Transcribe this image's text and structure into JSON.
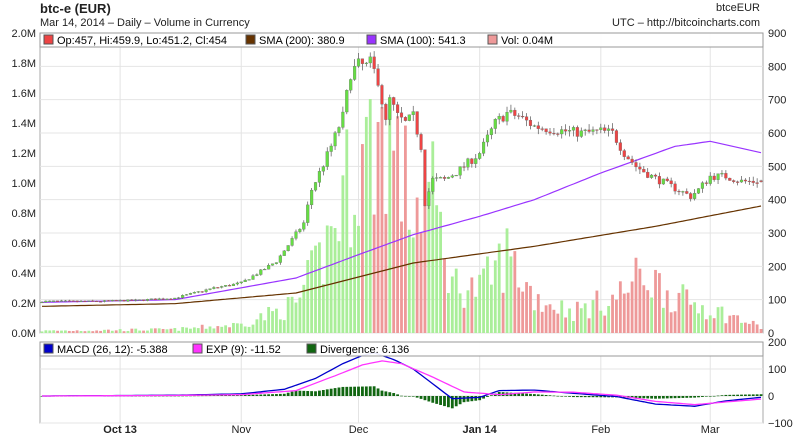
{
  "header": {
    "title": "btc-e (EUR)",
    "subtitle": "Mar 14, 2014 – Daily – Volume in Currency",
    "symbol": "btceEUR",
    "source": "UTC – http://bitcoincharts.com"
  },
  "price_legend": {
    "ohlc": "Op:457, Hi:459.9, Lo:451.2, Cl:454",
    "sma200": "SMA (200): 380.9",
    "sma100": "SMA (100): 541.3",
    "vol": "Vol: 0.04M"
  },
  "macd_legend": {
    "macd": "MACD (26, 12): -5.388",
    "exp": "EXP (9): -11.52",
    "div": "Divergence: 6.136"
  },
  "colors": {
    "up_candle": "#66dd44",
    "down_candle": "#ee4444",
    "up_volume": "#aaee99",
    "down_volume": "#ee9999",
    "sma200": "#663300",
    "sma100": "#9933ff",
    "macd": "#0000cc",
    "exp": "#ff33ff",
    "divergence": "#116611",
    "wick": "#555555",
    "grid": "#e4e4e4"
  },
  "chart_data": [
    {
      "type": "candlestick",
      "title": "btc-e (EUR)",
      "x_axis": {
        "tick_labels": [
          "Oct 13",
          "Nov",
          "Dec",
          "Jan 14",
          "Feb",
          "Mar"
        ],
        "start": "2013-09-11",
        "end": "2014-03-14"
      },
      "y_right": {
        "range": [
          0,
          900
        ],
        "tick_labels": [
          "0",
          "100",
          "200",
          "300",
          "400",
          "500",
          "600",
          "700",
          "800",
          "900"
        ]
      },
      "y_left": {
        "range": [
          0,
          2000000
        ],
        "tick_labels": [
          "0.0M",
          "0.2M",
          "0.4M",
          "0.6M",
          "0.8M",
          "1.0M",
          "1.2M",
          "1.4M",
          "1.6M",
          "1.8M",
          "2.0M"
        ]
      },
      "price_close_keypoints": [
        [
          "2013-09-11",
          95
        ],
        [
          "2013-09-25",
          95
        ],
        [
          "2013-10-05",
          98
        ],
        [
          "2013-10-15",
          105
        ],
        [
          "2013-10-25",
          135
        ],
        [
          "2013-11-01",
          150
        ],
        [
          "2013-11-06",
          185
        ],
        [
          "2013-11-10",
          215
        ],
        [
          "2013-11-14",
          280
        ],
        [
          "2013-11-17",
          330
        ],
        [
          "2013-11-19",
          430
        ],
        [
          "2013-11-21",
          480
        ],
        [
          "2013-11-24",
          560
        ],
        [
          "2013-11-27",
          650
        ],
        [
          "2013-11-29",
          780
        ],
        [
          "2013-12-01",
          805
        ],
        [
          "2013-12-03",
          800
        ],
        [
          "2013-12-04",
          810
        ],
        [
          "2013-12-06",
          760
        ],
        [
          "2013-12-08",
          630
        ],
        [
          "2013-12-09",
          700
        ],
        [
          "2013-12-11",
          650
        ],
        [
          "2013-12-13",
          630
        ],
        [
          "2013-12-15",
          650
        ],
        [
          "2013-12-17",
          560
        ],
        [
          "2013-12-18",
          390
        ],
        [
          "2013-12-20",
          460
        ],
        [
          "2013-12-23",
          460
        ],
        [
          "2013-12-27",
          490
        ],
        [
          "2014-01-01",
          540
        ],
        [
          "2014-01-05",
          630
        ],
        [
          "2014-01-08",
          660
        ],
        [
          "2014-01-11",
          650
        ],
        [
          "2014-01-15",
          620
        ],
        [
          "2014-01-20",
          610
        ],
        [
          "2014-01-27",
          600
        ],
        [
          "2014-02-01",
          605
        ],
        [
          "2014-02-04",
          600
        ],
        [
          "2014-02-07",
          540
        ],
        [
          "2014-02-10",
          500
        ],
        [
          "2014-02-14",
          470
        ],
        [
          "2014-02-19",
          440
        ],
        [
          "2014-02-24",
          410
        ],
        [
          "2014-02-26",
          430
        ],
        [
          "2014-03-01",
          470
        ],
        [
          "2014-03-05",
          470
        ],
        [
          "2014-03-09",
          455
        ],
        [
          "2014-03-14",
          454
        ]
      ],
      "volume_keypoints": [
        [
          "2013-09-11",
          15000
        ],
        [
          "2013-10-15",
          25000
        ],
        [
          "2013-11-01",
          60000
        ],
        [
          "2013-11-15",
          200000
        ],
        [
          "2013-11-22",
          550000
        ],
        [
          "2013-11-29",
          1100000
        ],
        [
          "2013-12-04",
          1300000
        ],
        [
          "2013-12-08",
          1450000
        ],
        [
          "2013-12-15",
          850000
        ],
        [
          "2013-12-19",
          1050000
        ],
        [
          "2013-12-25",
          350000
        ],
        [
          "2014-01-01",
          300000
        ],
        [
          "2014-01-08",
          550000
        ],
        [
          "2014-01-15",
          250000
        ],
        [
          "2014-01-25",
          150000
        ],
        [
          "2014-02-05",
          250000
        ],
        [
          "2014-02-12",
          420000
        ],
        [
          "2014-02-20",
          250000
        ],
        [
          "2014-03-01",
          170000
        ],
        [
          "2014-03-14",
          40000
        ]
      ],
      "sma200_keypoints": [
        [
          "2013-09-11",
          80
        ],
        [
          "2013-10-15",
          88
        ],
        [
          "2013-11-15",
          120
        ],
        [
          "2013-12-15",
          210
        ],
        [
          "2014-01-15",
          260
        ],
        [
          "2014-02-15",
          320
        ],
        [
          "2014-03-14",
          381
        ]
      ],
      "sma100_keypoints": [
        [
          "2013-09-11",
          92
        ],
        [
          "2013-10-15",
          100
        ],
        [
          "2013-11-15",
          165
        ],
        [
          "2013-12-01",
          235
        ],
        [
          "2013-12-15",
          295
        ],
        [
          "2014-01-01",
          350
        ],
        [
          "2014-01-15",
          400
        ],
        [
          "2014-02-01",
          480
        ],
        [
          "2014-02-20",
          560
        ],
        [
          "2014-03-01",
          575
        ],
        [
          "2014-03-14",
          541
        ]
      ],
      "ticker_ohlc": {
        "open": 457,
        "high": 459.9,
        "low": 451.2,
        "close": 454
      }
    },
    {
      "type": "line",
      "title": "MACD (26, 12)",
      "y_axis": {
        "range": [
          -100,
          200
        ],
        "tick_labels": [
          "200",
          "100",
          "0",
          "−100"
        ]
      },
      "macd_keypoints": [
        [
          "2013-09-11",
          0
        ],
        [
          "2013-10-15",
          3
        ],
        [
          "2013-11-01",
          8
        ],
        [
          "2013-11-12",
          25
        ],
        [
          "2013-11-20",
          65
        ],
        [
          "2013-11-27",
          120
        ],
        [
          "2013-12-02",
          150
        ],
        [
          "2013-12-05",
          160
        ],
        [
          "2013-12-10",
          135
        ],
        [
          "2013-12-15",
          100
        ],
        [
          "2013-12-20",
          45
        ],
        [
          "2013-12-25",
          -10
        ],
        [
          "2014-01-01",
          -5
        ],
        [
          "2014-01-06",
          20
        ],
        [
          "2014-01-15",
          22
        ],
        [
          "2014-01-25",
          10
        ],
        [
          "2014-02-05",
          -2
        ],
        [
          "2014-02-15",
          -30
        ],
        [
          "2014-02-25",
          -38
        ],
        [
          "2014-03-05",
          -18
        ],
        [
          "2014-03-14",
          -5
        ]
      ],
      "exp_keypoints": [
        [
          "2013-09-11",
          0
        ],
        [
          "2013-10-15",
          2
        ],
        [
          "2013-11-01",
          5
        ],
        [
          "2013-11-15",
          20
        ],
        [
          "2013-11-25",
          75
        ],
        [
          "2013-12-02",
          115
        ],
        [
          "2013-12-07",
          130
        ],
        [
          "2013-12-12",
          120
        ],
        [
          "2013-12-20",
          70
        ],
        [
          "2013-12-28",
          15
        ],
        [
          "2014-01-06",
          5
        ],
        [
          "2014-01-15",
          15
        ],
        [
          "2014-01-25",
          14
        ],
        [
          "2014-02-05",
          3
        ],
        [
          "2014-02-15",
          -20
        ],
        [
          "2014-02-25",
          -32
        ],
        [
          "2014-03-05",
          -22
        ],
        [
          "2014-03-14",
          -11.5
        ]
      ]
    }
  ]
}
